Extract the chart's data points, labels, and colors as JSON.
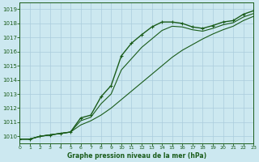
{
  "title": "Graphe pression niveau de la mer (hPa)",
  "bg_color": "#cce8f0",
  "grid_color": "#aaccdd",
  "line_color": "#1a5c1a",
  "xlim": [
    0,
    23
  ],
  "ylim": [
    1009.5,
    1019.5
  ],
  "yticks": [
    1010,
    1011,
    1012,
    1013,
    1014,
    1015,
    1016,
    1017,
    1018,
    1019
  ],
  "xticks": [
    0,
    1,
    2,
    3,
    4,
    5,
    6,
    7,
    8,
    9,
    10,
    11,
    12,
    13,
    14,
    15,
    16,
    17,
    18,
    19,
    20,
    21,
    22,
    23
  ],
  "hours": [
    0,
    1,
    2,
    3,
    4,
    5,
    6,
    7,
    8,
    9,
    10,
    11,
    12,
    13,
    14,
    15,
    16,
    17,
    18,
    19,
    20,
    21,
    22,
    23
  ],
  "line_main": [
    1009.8,
    1009.8,
    1010.0,
    1010.1,
    1010.2,
    1010.3,
    1011.3,
    1011.5,
    1012.8,
    1013.6,
    1015.7,
    1016.6,
    1017.2,
    1017.75,
    1018.1,
    1018.1,
    1018.0,
    1017.75,
    1017.65,
    1017.85,
    1018.1,
    1018.2,
    1018.65,
    1018.9
  ],
  "line_low": [
    1009.8,
    1009.8,
    1010.0,
    1010.1,
    1010.2,
    1010.3,
    1010.8,
    1011.1,
    1011.5,
    1012.0,
    1012.6,
    1013.2,
    1013.8,
    1014.4,
    1015.0,
    1015.6,
    1016.1,
    1016.5,
    1016.9,
    1017.25,
    1017.55,
    1017.8,
    1018.2,
    1018.5
  ],
  "line_high": [
    1009.8,
    1009.8,
    1010.0,
    1010.1,
    1010.2,
    1010.3,
    1011.1,
    1011.35,
    1012.3,
    1013.0,
    1014.7,
    1015.5,
    1016.3,
    1016.9,
    1017.5,
    1017.8,
    1017.75,
    1017.55,
    1017.45,
    1017.65,
    1017.9,
    1018.05,
    1018.45,
    1018.7
  ]
}
